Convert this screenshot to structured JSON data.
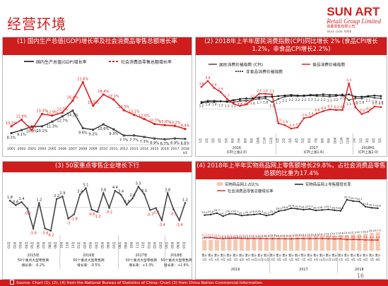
{
  "page": {
    "title": "经营环境",
    "page_number": "16"
  },
  "logo": {
    "name": "SUN ART",
    "sub": "Retail Group Limited",
    "cn": "高鑫零售有限公司",
    "code": "Stock code: 6808"
  },
  "footer": {
    "source": "Source: Chart (1), (2), (4) from the National Bureau of Statistics of China; Chart (3) from China Nation Commercial Information"
  },
  "colors": {
    "brand": "#cf1c1c",
    "gray_series": "#444444",
    "red_series": "#e02020",
    "bar": "#f4c8b0"
  },
  "panels": [
    {
      "heading": "(1) 国内生产总值(GDP)增长率及社会消费品零售总额增长率"
    },
    {
      "heading": "(2) 2018年上半年居民消费指数(CPI)同比增长 2% (食品CPI增长1.2%，非食品CPI增长2.2%)"
    },
    {
      "heading": "(3) 50家重点零售企业增长下行"
    },
    {
      "heading": "(4) 2018年上半年实物商品网上零售额增长29.8%，占社会消费品零售总额的比重为17.4%"
    }
  ],
  "chart_data": [
    {
      "type": "line",
      "x": [
        "2001",
        "2002",
        "2003",
        "2004",
        "2005",
        "2006",
        "2007",
        "2008",
        "2009",
        "2010",
        "2011",
        "2012",
        "2013",
        "2014",
        "2015",
        "2016",
        "2017",
        "2018 H1"
      ],
      "series": [
        {
          "name": "国内生产总值(GDP)增长率",
          "values": [
            8.3,
            9.1,
            10.0,
            10.1,
            11.3,
            12.7,
            14.2,
            9.6,
            9.2,
            10.6,
            9.3,
            7.7,
            7.7,
            7.3,
            6.9,
            6.7,
            6.9,
            6.8
          ]
        },
        {
          "name": "社会消费品零售总额增长率",
          "values": [
            10.1,
            11.8,
            9.1,
            13.3,
            12.9,
            13.7,
            16.8,
            21.6,
            15.5,
            18.4,
            17.1,
            14.3,
            13.1,
            12.0,
            10.7,
            10.4,
            10.2,
            9.4
          ]
        }
      ],
      "data_labels": {
        "gdp": [
          "8.3%",
          "9.1%",
          "10.0%",
          "10.1%",
          "11.3%",
          "12.7%",
          "14.2%",
          "9.6%",
          "9.2%",
          "10.6%",
          "9.3%",
          "7.7%",
          "7.7%",
          "7.3%",
          "6.9%",
          "6.7%",
          "6.9%",
          "6.8%"
        ],
        "retail": [
          "10.1%",
          "11.8%",
          "9.1%",
          "13.3%",
          "12.9%",
          "13.7%",
          "16.8%",
          "21.6%",
          "15.5%",
          "18.4%",
          "17.1%",
          "14.3%",
          "13.1%",
          "12.0%",
          "10.7%",
          "10.4%",
          "10.2%",
          "9.4%"
        ]
      },
      "legend": "top"
    },
    {
      "type": "line",
      "series": [
        {
          "name": "居民消费价格指数 (CPI)",
          "values": [
            1.2,
            1.4,
            1.4,
            1.3,
            1.2,
            1.1,
            1.4,
            1.4,
            1.6,
            1.7,
            1.8,
            1.2,
            1.7,
            2.1,
            2.2,
            2.2,
            2.2,
            2.3,
            2.2,
            2.2,
            2.1,
            2.2,
            2.5,
            1.5,
            1.8,
            1.8,
            2.1,
            1.9,
            1.8
          ]
        },
        {
          "name": "食品消费价格指数",
          "values": [
            3.8,
            4.8,
            3.6,
            2.9,
            1.7,
            0.9,
            0.5,
            0.8,
            1.6,
            2.6,
            2.6,
            2.5,
            -2.5,
            -2.8,
            -3.4,
            -3.2,
            -1.6,
            -1.4,
            -0.8,
            -0.4,
            -0.1,
            -0.2,
            -0.2,
            4.4,
            0.3,
            -0.9,
            -0.5,
            0.4,
            0.3
          ]
        },
        {
          "name": "非食品消费价格指数",
          "values": [
            1.0,
            1.2,
            1.2,
            1.3,
            1.3,
            1.5,
            1.7,
            1.8,
            1.8,
            2.0,
            2.1,
            2.1,
            2.2,
            2.3,
            2.4,
            2.3,
            2.3,
            2.4,
            2.4,
            2.5,
            2.4,
            2.4,
            2.3,
            2.5,
            2.1,
            2.1,
            2.2,
            2.3,
            2.2
          ]
        }
      ],
      "period_labels": [
        "2016 (CPI上涨2.0)",
        "2017 (CPI上涨1.6)",
        "2018H1 (CPI上涨2.0)"
      ],
      "legend": "top-left"
    },
    {
      "type": "line",
      "series": [
        {
          "name": "50家重点大型零售企业增长率",
          "values": [
            1.8,
            0.6,
            1.4,
            -0.3,
            -5.6,
            1.2,
            -5.6,
            -6.2,
            2.2,
            2.9,
            -3.0,
            -1.8,
            3.4,
            5.1,
            -0.6,
            -1.2,
            3.8,
            -0.1,
            4.4,
            3.4,
            0.7,
            2.4,
            5.5,
            3.5,
            -0.7,
            -0.2,
            -3.4,
            3.8,
            -0.5,
            -3.4,
            1.2
          ]
        }
      ],
      "notes": [
        {
          "year": "2015年",
          "text": "50个重点大型零售商",
          "growth": "增长率：-0.2%"
        },
        {
          "year": "2016年",
          "text": "50个重点大型零售商",
          "growth": "增长率：-0.5%"
        },
        {
          "year": "2017年",
          "text": "50个重点大型零售商",
          "growth": "增长率：+3.3%"
        },
        {
          "year": "2018年",
          "text": "50个重点大型零售商",
          "growth": "增长率：+1.6%"
        }
      ]
    },
    {
      "type": "bar",
      "series": [
        {
          "name": "实物商品网上占比%",
          "kind": "bar",
          "values": [
            10.0,
            10.3,
            10.2,
            10.6,
            10.8,
            10.8,
            11.0,
            11.1,
            11.3,
            11.5,
            11.9,
            12.6,
            11.9,
            12.4,
            12.5,
            13.0,
            13.1,
            13.4,
            13.5,
            13.7,
            14.1,
            14.3,
            14.6,
            15.0,
            15.5,
            15.7,
            16.0,
            16.9,
            17.4
          ]
        },
        {
          "name": "实物商品网上零售额增长率",
          "kind": "line",
          "values": [
            25.4,
            25.8,
            26.7,
            24.7,
            26.2,
            26.1,
            25.1,
            25.5,
            25.8,
            26.2,
            25.1,
            25.9,
            28.0,
            28.6,
            29.8,
            29.4,
            28.9,
            29.3,
            28.4,
            28.7,
            29.1,
            28.5,
            28.1,
            35.3,
            34.4,
            34.1,
            30.8,
            30.1,
            29.8
          ]
        },
        {
          "name": "社会消费品零售总额增长率",
          "kind": "line",
          "values": [
            11.1,
            11.2,
            10.5,
            10.3,
            10.5,
            10.6,
            10.5,
            10.4,
            10.4,
            10.4,
            10.4,
            10.3,
            10.4,
            10.3,
            10.2,
            10.4,
            10.4,
            10.3,
            10.4,
            10.4,
            10.3,
            10.1,
            10.2,
            9.7,
            9.8,
            9.7,
            9.5,
            9.4,
            9.4
          ]
        }
      ],
      "period_labels": [
        "2016",
        "2017",
        "2018"
      ],
      "legend": "top"
    }
  ]
}
